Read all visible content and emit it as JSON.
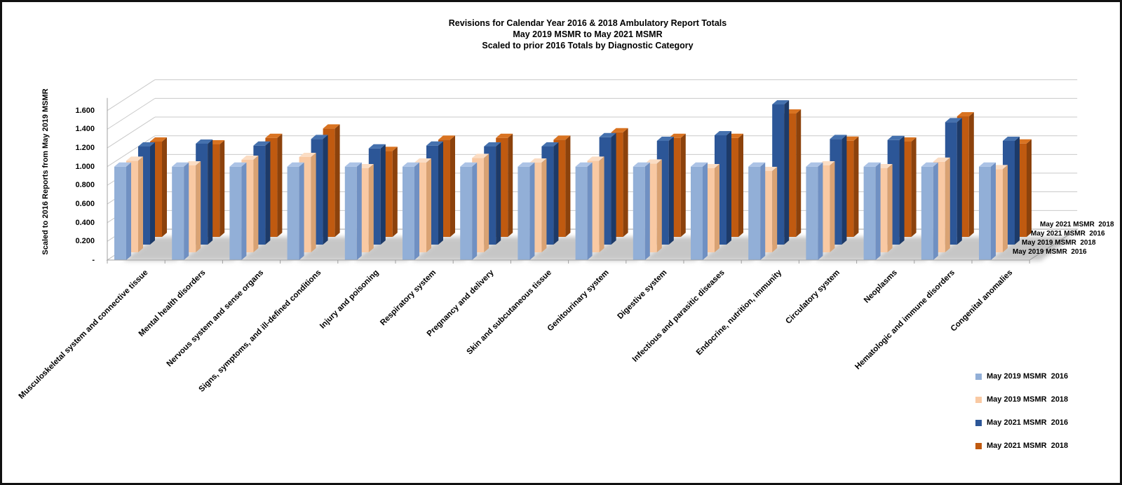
{
  "title": {
    "line1": "Revisions for Calendar Year 2016 & 2018 Ambulatory  Report Totals",
    "line2": "May 2019 MSMR to May 2021 MSMR",
    "line3": "Scaled to prior 2016 Totals by Diagnostic Category"
  },
  "y_axis": {
    "title": "Scaled to 2016 Reports from May 2019 MSMR",
    "ticks": [
      {
        "label": "1.600",
        "value": 1.6
      },
      {
        "label": "1.400",
        "value": 1.4
      },
      {
        "label": "1.200",
        "value": 1.2
      },
      {
        "label": "1.000",
        "value": 1.0
      },
      {
        "label": "0.800",
        "value": 0.8
      },
      {
        "label": "0.600",
        "value": 0.6
      },
      {
        "label": "0.400",
        "value": 0.4
      },
      {
        "label": "0.200",
        "value": 0.2
      },
      {
        "label": "-",
        "value": 0.0
      }
    ]
  },
  "depth_axis": {
    "labels_bottom_to_top": [
      "May 2019 MSMR  2016",
      "May 2019 MSMR  2018",
      "May 2021 MSMR  2016",
      "May 2021 MSMR  2018"
    ]
  },
  "legend": {
    "items": [
      {
        "label": "May 2019 MSMR  2016",
        "color": "#92AFD7"
      },
      {
        "label": "May 2019 MSMR  2018",
        "color": "#F9C9A3"
      },
      {
        "label": "May 2021 MSMR  2016",
        "color": "#2C5697"
      },
      {
        "label": "May 2021 MSMR  2018",
        "color": "#C05A10"
      }
    ]
  },
  "chart_data": {
    "type": "bar",
    "style": "3d-clustered-column-depth-series",
    "title": "Revisions for Calendar Year 2016 & 2018 Ambulatory Report Totals / May 2019 MSMR to May 2021 MSMR / Scaled to prior 2016 Totals by Diagnostic Category",
    "xlabel": "",
    "ylabel": "Scaled to 2016 Reports from May 2019 MSMR",
    "ylim": [
      0,
      1.6
    ],
    "ytick_step": 0.2,
    "grid": true,
    "legend_position": "bottom-right",
    "categories": [
      "Musculoskeletal system and connective tissue",
      "Mental health disorders",
      "Nervous system and sense organs",
      "Signs, symptoms, and ill-defined conditions",
      "Injury and poisoning",
      "Respiratory system",
      "Pregnancy and delivery",
      "Skin and subcutaneous tissue",
      "Genitourinary system",
      "Digestive system",
      "Infectious and parasitic diseases",
      "Endocrine, nutrition, immunity",
      "Circulatory system",
      "Neoplasms",
      "Hematologic and immune disorders",
      "Congenital anomalies"
    ],
    "series": [
      {
        "name": "May 2019 MSMR  2016",
        "color_front": "#92AFD7",
        "color_top": "#ACC3E6",
        "color_side": "#7090C2",
        "values": [
          1.0,
          1.0,
          1.0,
          1.0,
          1.0,
          1.0,
          1.0,
          1.0,
          1.0,
          1.0,
          1.0,
          1.0,
          1.0,
          1.0,
          1.0,
          1.0
        ]
      },
      {
        "name": "May 2019 MSMR  2018",
        "color_front": "#F9C9A3",
        "color_top": "#FBDDC4",
        "color_side": "#D9A273",
        "values": [
          0.98,
          0.93,
          0.99,
          1.02,
          0.9,
          0.96,
          1.01,
          0.96,
          0.98,
          0.95,
          0.9,
          0.87,
          0.93,
          0.9,
          0.97,
          0.89
        ]
      },
      {
        "name": "May 2021 MSMR  2016",
        "color_front": "#2C5697",
        "color_top": "#4571AE",
        "color_side": "#1D3A68",
        "values": [
          1.05,
          1.08,
          1.06,
          1.13,
          1.03,
          1.06,
          1.05,
          1.05,
          1.15,
          1.11,
          1.17,
          1.5,
          1.13,
          1.12,
          1.31,
          1.11
        ]
      },
      {
        "name": "May 2021 MSMR  2018",
        "color_front": "#C05A10",
        "color_top": "#D97321",
        "color_side": "#8C420C",
        "values": [
          1.02,
          0.99,
          1.06,
          1.16,
          0.92,
          1.04,
          1.06,
          1.04,
          1.12,
          1.06,
          1.06,
          1.32,
          1.03,
          1.02,
          1.29,
          1.0
        ]
      }
    ],
    "axis_colors": {
      "gridline": "#C9C9C9",
      "axis_line": "#A0A0A0",
      "shadow": "#8E8E8E"
    }
  }
}
